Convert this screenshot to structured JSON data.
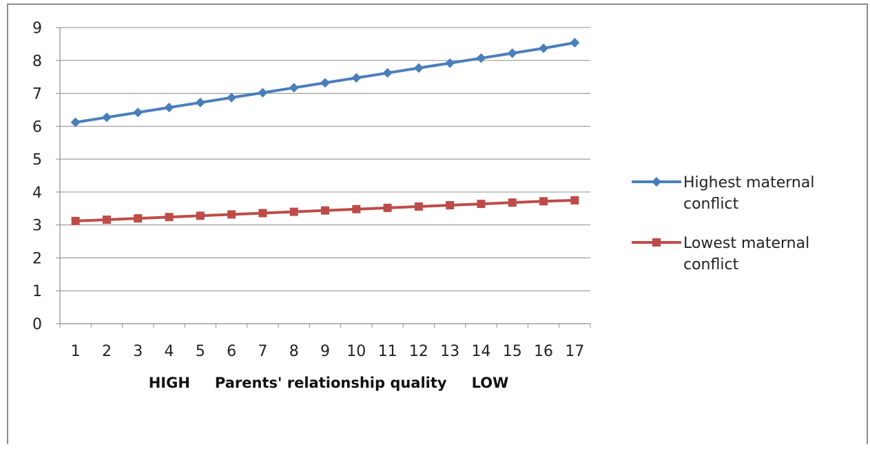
{
  "chart_data": {
    "type": "line",
    "title": "",
    "xlabel": "HIGH      Parents' relationship quality   LOW",
    "xlabel_parts": [
      "HIGH",
      "Parents' relationship quality",
      "LOW"
    ],
    "ylabel": "",
    "categories": [
      "1",
      "2",
      "3",
      "4",
      "5",
      "6",
      "7",
      "8",
      "9",
      "10",
      "11",
      "12",
      "13",
      "14",
      "15",
      "16",
      "17"
    ],
    "ylim": [
      0,
      9
    ],
    "yticks": [
      0,
      1,
      2,
      3,
      4,
      5,
      6,
      7,
      8,
      9
    ],
    "grid": "horizontal",
    "legend_position": "right",
    "series": [
      {
        "name": "Highest maternal conflict",
        "name_lines": [
          "Highest maternal",
          "conflict"
        ],
        "color": "#4a7ebb",
        "marker": "diamond",
        "values": [
          6.12,
          6.27,
          6.42,
          6.57,
          6.72,
          6.87,
          7.02,
          7.17,
          7.32,
          7.47,
          7.62,
          7.77,
          7.92,
          8.07,
          8.22,
          8.37,
          8.54
        ]
      },
      {
        "name": "Lowest maternal conflict",
        "name_lines": [
          "Lowest maternal",
          "conflict"
        ],
        "color": "#be4b48",
        "marker": "square",
        "values": [
          3.12,
          3.16,
          3.2,
          3.24,
          3.28,
          3.32,
          3.36,
          3.4,
          3.44,
          3.48,
          3.52,
          3.56,
          3.6,
          3.64,
          3.68,
          3.72,
          3.75
        ]
      }
    ]
  }
}
